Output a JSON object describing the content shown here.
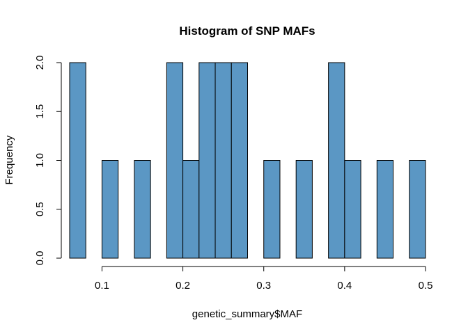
{
  "chart_data": {
    "type": "bar",
    "title": "Histogram of SNP MAFs",
    "xlabel": "genetic_summary$MAF",
    "ylabel": "Frequency",
    "bar_color": "#5B97C4",
    "bin_width": 0.02,
    "xlim": [
      0.06,
      0.5
    ],
    "ylim": [
      0,
      2
    ],
    "x_ticks": [
      0.1,
      0.2,
      0.3,
      0.4,
      0.5
    ],
    "x_tick_labels": [
      "0.1",
      "0.2",
      "0.3",
      "0.4",
      "0.5"
    ],
    "y_ticks": [
      0,
      0.5,
      1,
      1.5,
      2
    ],
    "y_tick_labels": [
      "0.0",
      "0.5",
      "1.0",
      "1.5",
      "2.0"
    ],
    "bin_starts": [
      0.06,
      0.08,
      0.1,
      0.12,
      0.14,
      0.16,
      0.18,
      0.2,
      0.22,
      0.24,
      0.26,
      0.28,
      0.3,
      0.32,
      0.34,
      0.36,
      0.38,
      0.4,
      0.42,
      0.44,
      0.46,
      0.48
    ],
    "values": [
      2,
      0,
      1,
      0,
      1,
      0,
      2,
      1,
      2,
      2,
      2,
      0,
      1,
      0,
      1,
      0,
      2,
      1,
      0,
      1,
      0,
      1
    ]
  }
}
